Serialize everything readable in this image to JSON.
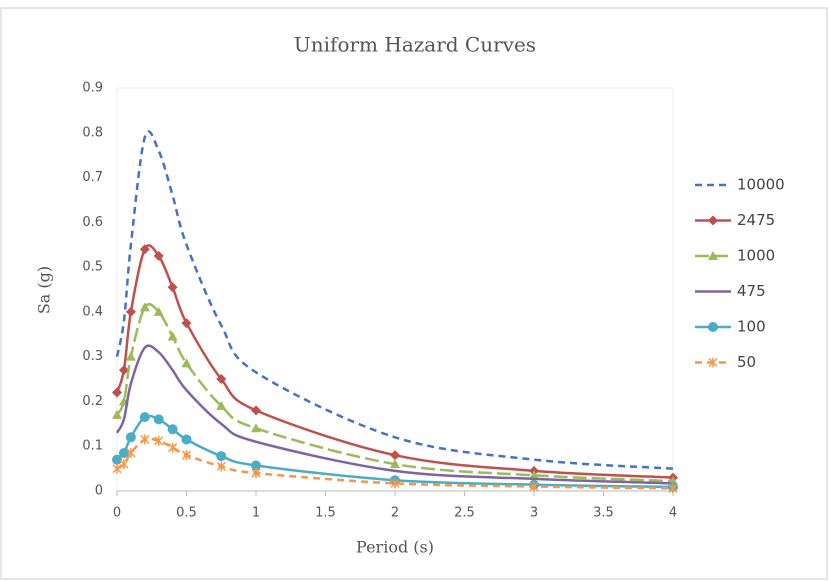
{
  "chart_data": {
    "type": "line",
    "title": "Uniform Hazard Curves",
    "x_label": "Period (s)",
    "y_label": "Sa (g)",
    "x": [
      0,
      0.05,
      0.1,
      0.2,
      0.3,
      0.4,
      0.5,
      0.75,
      1,
      2,
      3,
      4
    ],
    "xlim": [
      0,
      4
    ],
    "xticks": [
      0,
      0.5,
      1,
      1.5,
      2,
      2.5,
      3,
      3.5,
      4
    ],
    "ylim": [
      0,
      0.9
    ],
    "yticks": [
      0,
      0.1,
      0.2,
      0.3,
      0.4,
      0.5,
      0.6,
      0.7,
      0.8,
      0.9
    ],
    "grid": false,
    "legend": "right",
    "series": [
      {
        "name": "10000",
        "color": "#4472c4",
        "dash": "dashed",
        "marker": "none",
        "values": [
          0.3,
          0.38,
          0.55,
          0.79,
          0.76,
          0.66,
          0.55,
          0.37,
          0.265,
          0.12,
          0.07,
          0.05
        ]
      },
      {
        "name": "2475",
        "color": "#c0504d",
        "dash": "solid",
        "marker": "diamond",
        "values": [
          0.22,
          0.27,
          0.4,
          0.54,
          0.525,
          0.455,
          0.375,
          0.25,
          0.18,
          0.08,
          0.045,
          0.03
        ]
      },
      {
        "name": "1000",
        "color": "#9bbb59",
        "dash": "longdash",
        "marker": "triangle",
        "values": [
          0.17,
          0.2,
          0.3,
          0.41,
          0.4,
          0.345,
          0.285,
          0.19,
          0.14,
          0.06,
          0.035,
          0.022
        ]
      },
      {
        "name": "475",
        "color": "#8064a2",
        "dash": "solid",
        "marker": "none",
        "values": [
          0.13,
          0.16,
          0.24,
          0.32,
          0.31,
          0.27,
          0.225,
          0.15,
          0.11,
          0.045,
          0.027,
          0.017
        ]
      },
      {
        "name": "100",
        "color": "#4bacc6",
        "dash": "solid",
        "marker": "circle",
        "values": [
          0.07,
          0.085,
          0.12,
          0.165,
          0.16,
          0.138,
          0.115,
          0.078,
          0.057,
          0.024,
          0.014,
          0.009
        ]
      },
      {
        "name": "50",
        "color": "#f79646",
        "dash": "dashed",
        "marker": "star",
        "values": [
          0.05,
          0.06,
          0.085,
          0.115,
          0.112,
          0.097,
          0.08,
          0.055,
          0.04,
          0.017,
          0.01,
          0.006
        ]
      }
    ]
  }
}
